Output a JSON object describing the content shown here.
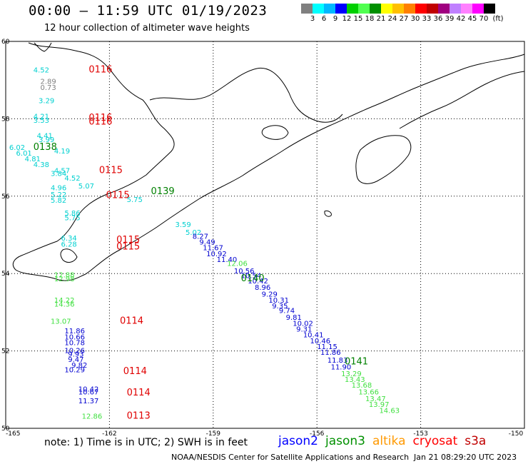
{
  "header": {
    "title": "00:00 – 11:59 UTC 01/19/2023",
    "subtitle": "12 hour collection of altimeter wave heights"
  },
  "legend": {
    "unit": "(ft)",
    "ticks": [
      "3",
      "6",
      "9",
      "12",
      "15",
      "18",
      "21",
      "24",
      "27",
      "30",
      "33",
      "36",
      "39",
      "42",
      "45",
      "70"
    ],
    "colors": [
      "#808080",
      "#00ffff",
      "#00b8ff",
      "#0000ff",
      "#00d000",
      "#50ff50",
      "#009000",
      "#ffff00",
      "#ffc000",
      "#ff8000",
      "#ff0000",
      "#c00000",
      "#a00080",
      "#c080ff",
      "#ff80ff",
      "#ff00ff",
      "#000000"
    ]
  },
  "axes": {
    "lat_labels": [
      "60",
      "58",
      "56",
      "54",
      "52",
      "50"
    ],
    "lon_labels": [
      "-165",
      "-162",
      "-159",
      "-156",
      "-153",
      "-150"
    ]
  },
  "footer": {
    "note": "note: 1) Time is in UTC; 2) SWH is in feet",
    "credit": "NOAA/NESDIS Center for Satellite Applications and Research",
    "stamp": "Jan 21 08:29:20 UTC 2023",
    "satellites": [
      {
        "name": "jason2",
        "color": "#0000ff"
      },
      {
        "name": "jason3",
        "color": "#009000"
      },
      {
        "name": "altika",
        "color": "#ff9900"
      },
      {
        "name": "cryosat",
        "color": "#ff0000"
      },
      {
        "name": "s3a",
        "color": "#c00000"
      }
    ]
  },
  "time_labels": [
    {
      "text": "0116",
      "lon": -162.6,
      "lat": 59.2,
      "color": "#e00000"
    },
    {
      "text": "0116",
      "lon": -162.6,
      "lat": 57.95,
      "color": "#e00000"
    },
    {
      "text": "0116",
      "lon": -162.6,
      "lat": 57.85,
      "color": "#e00000"
    },
    {
      "text": "0138",
      "lon": -164.2,
      "lat": 57.2,
      "color": "#008000"
    },
    {
      "text": "0115",
      "lon": -162.3,
      "lat": 56.6,
      "color": "#e00000"
    },
    {
      "text": "0115",
      "lon": -162.1,
      "lat": 55.95,
      "color": "#e00000"
    },
    {
      "text": "0139",
      "lon": -160.8,
      "lat": 56.05,
      "color": "#008000"
    },
    {
      "text": "0115",
      "lon": -161.8,
      "lat": 54.8,
      "color": "#e00000"
    },
    {
      "text": "0115",
      "lon": -161.8,
      "lat": 54.62,
      "color": "#e00000"
    },
    {
      "text": "0140",
      "lon": -158.2,
      "lat": 53.8,
      "color": "#008000"
    },
    {
      "text": "0114",
      "lon": -161.7,
      "lat": 52.7,
      "color": "#e00000"
    },
    {
      "text": "0114",
      "lon": -161.6,
      "lat": 51.4,
      "color": "#e00000"
    },
    {
      "text": "0114",
      "lon": -161.5,
      "lat": 50.85,
      "color": "#e00000"
    },
    {
      "text": "0113",
      "lon": -161.5,
      "lat": 50.25,
      "color": "#e00000"
    },
    {
      "text": "0141",
      "lon": -155.2,
      "lat": 51.65,
      "color": "#008000"
    }
  ],
  "wave_heights": [
    {
      "v": "4.52",
      "lon": -164.2,
      "lat": 59.2,
      "color": "#00d0d0"
    },
    {
      "v": "2.89",
      "lon": -164.0,
      "lat": 58.9,
      "color": "#808080"
    },
    {
      "v": "0.73",
      "lon": -164.0,
      "lat": 58.75,
      "color": "#808080"
    },
    {
      "v": "3.29",
      "lon": -164.05,
      "lat": 58.4,
      "color": "#00d0d0"
    },
    {
      "v": "4.21",
      "lon": -164.2,
      "lat": 58.0,
      "color": "#00d0d0"
    },
    {
      "v": "3.53",
      "lon": -164.2,
      "lat": 57.9,
      "color": "#00d0d0"
    },
    {
      "v": "4.41",
      "lon": -164.1,
      "lat": 57.5,
      "color": "#00d0d0"
    },
    {
      "v": "3.99",
      "lon": -164.05,
      "lat": 57.4,
      "color": "#00d0d0"
    },
    {
      "v": "6.02",
      "lon": -164.9,
      "lat": 57.2,
      "color": "#00d0d0"
    },
    {
      "v": "6.01",
      "lon": -164.7,
      "lat": 57.05,
      "color": "#00d0d0"
    },
    {
      "v": "4.19",
      "lon": -163.6,
      "lat": 57.1,
      "color": "#00d0d0"
    },
    {
      "v": "4.81",
      "lon": -164.45,
      "lat": 56.9,
      "color": "#00d0d0"
    },
    {
      "v": "4.38",
      "lon": -164.2,
      "lat": 56.75,
      "color": "#00d0d0"
    },
    {
      "v": "4.57",
      "lon": -163.6,
      "lat": 56.6,
      "color": "#00d0d0"
    },
    {
      "v": "3.84",
      "lon": -163.7,
      "lat": 56.52,
      "color": "#00d0d0"
    },
    {
      "v": "4.52",
      "lon": -163.3,
      "lat": 56.4,
      "color": "#00d0d0"
    },
    {
      "v": "5.07",
      "lon": -162.9,
      "lat": 56.2,
      "color": "#00d0d0"
    },
    {
      "v": "4.96",
      "lon": -163.7,
      "lat": 56.15,
      "color": "#00d0d0"
    },
    {
      "v": "5.22",
      "lon": -163.7,
      "lat": 55.98,
      "color": "#00d0d0"
    },
    {
      "v": "5.82",
      "lon": -163.7,
      "lat": 55.83,
      "color": "#00d0d0"
    },
    {
      "v": "5.75",
      "lon": -161.5,
      "lat": 55.85,
      "color": "#00d0d0"
    },
    {
      "v": "5.86",
      "lon": -163.3,
      "lat": 55.5,
      "color": "#00d0d0"
    },
    {
      "v": "5.75",
      "lon": -163.3,
      "lat": 55.38,
      "color": "#00d0d0"
    },
    {
      "v": "3.59",
      "lon": -160.1,
      "lat": 55.2,
      "color": "#00d0d0"
    },
    {
      "v": "5.02",
      "lon": -159.8,
      "lat": 55.0,
      "color": "#00d0d0"
    },
    {
      "v": "8.27",
      "lon": -159.6,
      "lat": 54.9,
      "color": "#0000d0"
    },
    {
      "v": "9.49",
      "lon": -159.4,
      "lat": 54.75,
      "color": "#0000d0"
    },
    {
      "v": "11.67",
      "lon": -159.3,
      "lat": 54.6,
      "color": "#0000d0"
    },
    {
      "v": "10.92",
      "lon": -159.2,
      "lat": 54.45,
      "color": "#0000d0"
    },
    {
      "v": "11.40",
      "lon": -158.9,
      "lat": 54.3,
      "color": "#0000d0"
    },
    {
      "v": "12.06",
      "lon": -158.6,
      "lat": 54.2,
      "color": "#40e040"
    },
    {
      "v": "10.56",
      "lon": -158.4,
      "lat": 54.0,
      "color": "#0000d0"
    },
    {
      "v": "10.54",
      "lon": -158.2,
      "lat": 53.88,
      "color": "#0000d0"
    },
    {
      "v": "10.42",
      "lon": -158.0,
      "lat": 53.75,
      "color": "#0000d0"
    },
    {
      "v": "8.96",
      "lon": -157.8,
      "lat": 53.58,
      "color": "#0000d0"
    },
    {
      "v": "9.29",
      "lon": -157.6,
      "lat": 53.4,
      "color": "#0000d0"
    },
    {
      "v": "10.31",
      "lon": -157.4,
      "lat": 53.25,
      "color": "#0000d0"
    },
    {
      "v": "9.35",
      "lon": -157.3,
      "lat": 53.1,
      "color": "#0000d0"
    },
    {
      "v": "9.74",
      "lon": -157.1,
      "lat": 52.98,
      "color": "#0000d0"
    },
    {
      "v": "9.81",
      "lon": -156.9,
      "lat": 52.8,
      "color": "#0000d0"
    },
    {
      "v": "10.02",
      "lon": -156.7,
      "lat": 52.65,
      "color": "#0000d0"
    },
    {
      "v": "9.31",
      "lon": -156.6,
      "lat": 52.5,
      "color": "#0000d0"
    },
    {
      "v": "10.41",
      "lon": -156.4,
      "lat": 52.35,
      "color": "#0000d0"
    },
    {
      "v": "10.46",
      "lon": -156.2,
      "lat": 52.2,
      "color": "#0000d0"
    },
    {
      "v": "11.15",
      "lon": -156.0,
      "lat": 52.05,
      "color": "#0000d0"
    },
    {
      "v": "11.86",
      "lon": -155.9,
      "lat": 51.9,
      "color": "#0000d0"
    },
    {
      "v": "11.83",
      "lon": -155.7,
      "lat": 51.7,
      "color": "#0000d0"
    },
    {
      "v": "11.90",
      "lon": -155.6,
      "lat": 51.52,
      "color": "#0000d0"
    },
    {
      "v": "13.29",
      "lon": -155.3,
      "lat": 51.35,
      "color": "#40e040"
    },
    {
      "v": "13.43",
      "lon": -155.2,
      "lat": 51.2,
      "color": "#40e040"
    },
    {
      "v": "13.68",
      "lon": -155.0,
      "lat": 51.05,
      "color": "#40e040"
    },
    {
      "v": "13.66",
      "lon": -154.8,
      "lat": 50.88,
      "color": "#40e040"
    },
    {
      "v": "13.47",
      "lon": -154.6,
      "lat": 50.7,
      "color": "#40e040"
    },
    {
      "v": "13.97",
      "lon": -154.5,
      "lat": 50.55,
      "color": "#40e040"
    },
    {
      "v": "14.63",
      "lon": -154.2,
      "lat": 50.4,
      "color": "#40e040"
    },
    {
      "v": "6.34",
      "lon": -163.4,
      "lat": 54.85,
      "color": "#00d0d0"
    },
    {
      "v": "6.28",
      "lon": -163.4,
      "lat": 54.7,
      "color": "#00d0d0"
    },
    {
      "v": "12.88",
      "lon": -163.6,
      "lat": 53.9,
      "color": "#40e040"
    },
    {
      "v": "12.98",
      "lon": -163.6,
      "lat": 53.8,
      "color": "#40e040"
    },
    {
      "v": "14.22",
      "lon": -163.6,
      "lat": 53.25,
      "color": "#40e040"
    },
    {
      "v": "14.36",
      "lon": -163.6,
      "lat": 53.15,
      "color": "#40e040"
    },
    {
      "v": "13.07",
      "lon": -163.7,
      "lat": 52.7,
      "color": "#40e040"
    },
    {
      "v": "11.86",
      "lon": -163.3,
      "lat": 52.45,
      "color": "#0000d0"
    },
    {
      "v": "10.66",
      "lon": -163.3,
      "lat": 52.3,
      "color": "#0000d0"
    },
    {
      "v": "10.78",
      "lon": -163.3,
      "lat": 52.15,
      "color": "#0000d0"
    },
    {
      "v": "10.26",
      "lon": -163.3,
      "lat": 51.95,
      "color": "#0000d0"
    },
    {
      "v": "9.93",
      "lon": -163.2,
      "lat": 51.85,
      "color": "#0000d0"
    },
    {
      "v": "9.47",
      "lon": -163.2,
      "lat": 51.72,
      "color": "#0000d0"
    },
    {
      "v": "9.82",
      "lon": -163.1,
      "lat": 51.57,
      "color": "#0000d0"
    },
    {
      "v": "10.29",
      "lon": -163.3,
      "lat": 51.45,
      "color": "#0000d0"
    },
    {
      "v": "10.42",
      "lon": -162.9,
      "lat": 50.95,
      "color": "#0000d0"
    },
    {
      "v": "10.67",
      "lon": -162.9,
      "lat": 50.88,
      "color": "#0000d0"
    },
    {
      "v": "11.37",
      "lon": -162.9,
      "lat": 50.65,
      "color": "#0000d0"
    },
    {
      "v": "12.86",
      "lon": -162.8,
      "lat": 50.25,
      "color": "#40e040"
    }
  ]
}
